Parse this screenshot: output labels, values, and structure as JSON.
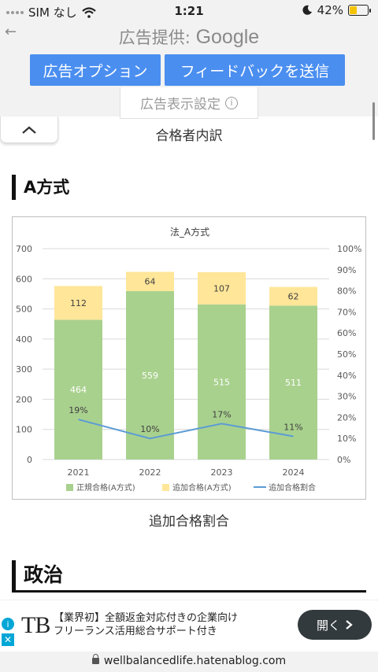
{
  "status_bar": {
    "carrier": "SIM なし",
    "time": "1:21",
    "battery": "42%",
    "battery_level": 0.42
  },
  "ad_header": {
    "ads_by": "広告提供:",
    "brand": "Google",
    "ad_options": "広告オプション",
    "send_feedback": "フィードバックを送信",
    "ad_settings": "広告表示設定",
    "info_glyph": "i"
  },
  "collapse_label": "^",
  "table_caption": "合格者内訳",
  "section_a": "A方式",
  "chart_caption": "追加合格割合",
  "section_b": "政治",
  "chart_data": {
    "type": "bar",
    "title": "法_A方式",
    "categories": [
      "2021",
      "2022",
      "2023",
      "2024"
    ],
    "series": [
      {
        "name": "正規合格(A方式)",
        "kind": "bar",
        "stacked": true,
        "color": "#a9d18e",
        "values": [
          464,
          559,
          515,
          511
        ]
      },
      {
        "name": "追加合格(A方式)",
        "kind": "bar",
        "stacked": true,
        "color": "#ffe699",
        "values": [
          112,
          64,
          107,
          62
        ]
      },
      {
        "name": "追加合格割合",
        "kind": "line",
        "axis": "right",
        "color": "#5b9bd5",
        "values": [
          19,
          10,
          17,
          11
        ],
        "labels": [
          "19%",
          "10%",
          "17%",
          "11%"
        ]
      }
    ],
    "ylim": [
      0,
      700
    ],
    "yticks": [
      "0",
      "100",
      "200",
      "300",
      "400",
      "500",
      "600",
      "700"
    ],
    "y2lim": [
      0,
      100
    ],
    "y2ticks": [
      "0%",
      "10%",
      "20%",
      "30%",
      "40%",
      "50%",
      "60%",
      "70%",
      "80%",
      "90%",
      "100%"
    ],
    "legend": "bottom",
    "grid": true
  },
  "ad_banner": {
    "logo": "TB",
    "line1": "【業界初】全額返金対応付きの企業向け",
    "line2": "フリーランス活用総合サポート付き",
    "open_button": "開く",
    "info_glyph": "i",
    "close_glyph": "✕"
  },
  "url": "wellbalancedlife.hatenablog.com"
}
